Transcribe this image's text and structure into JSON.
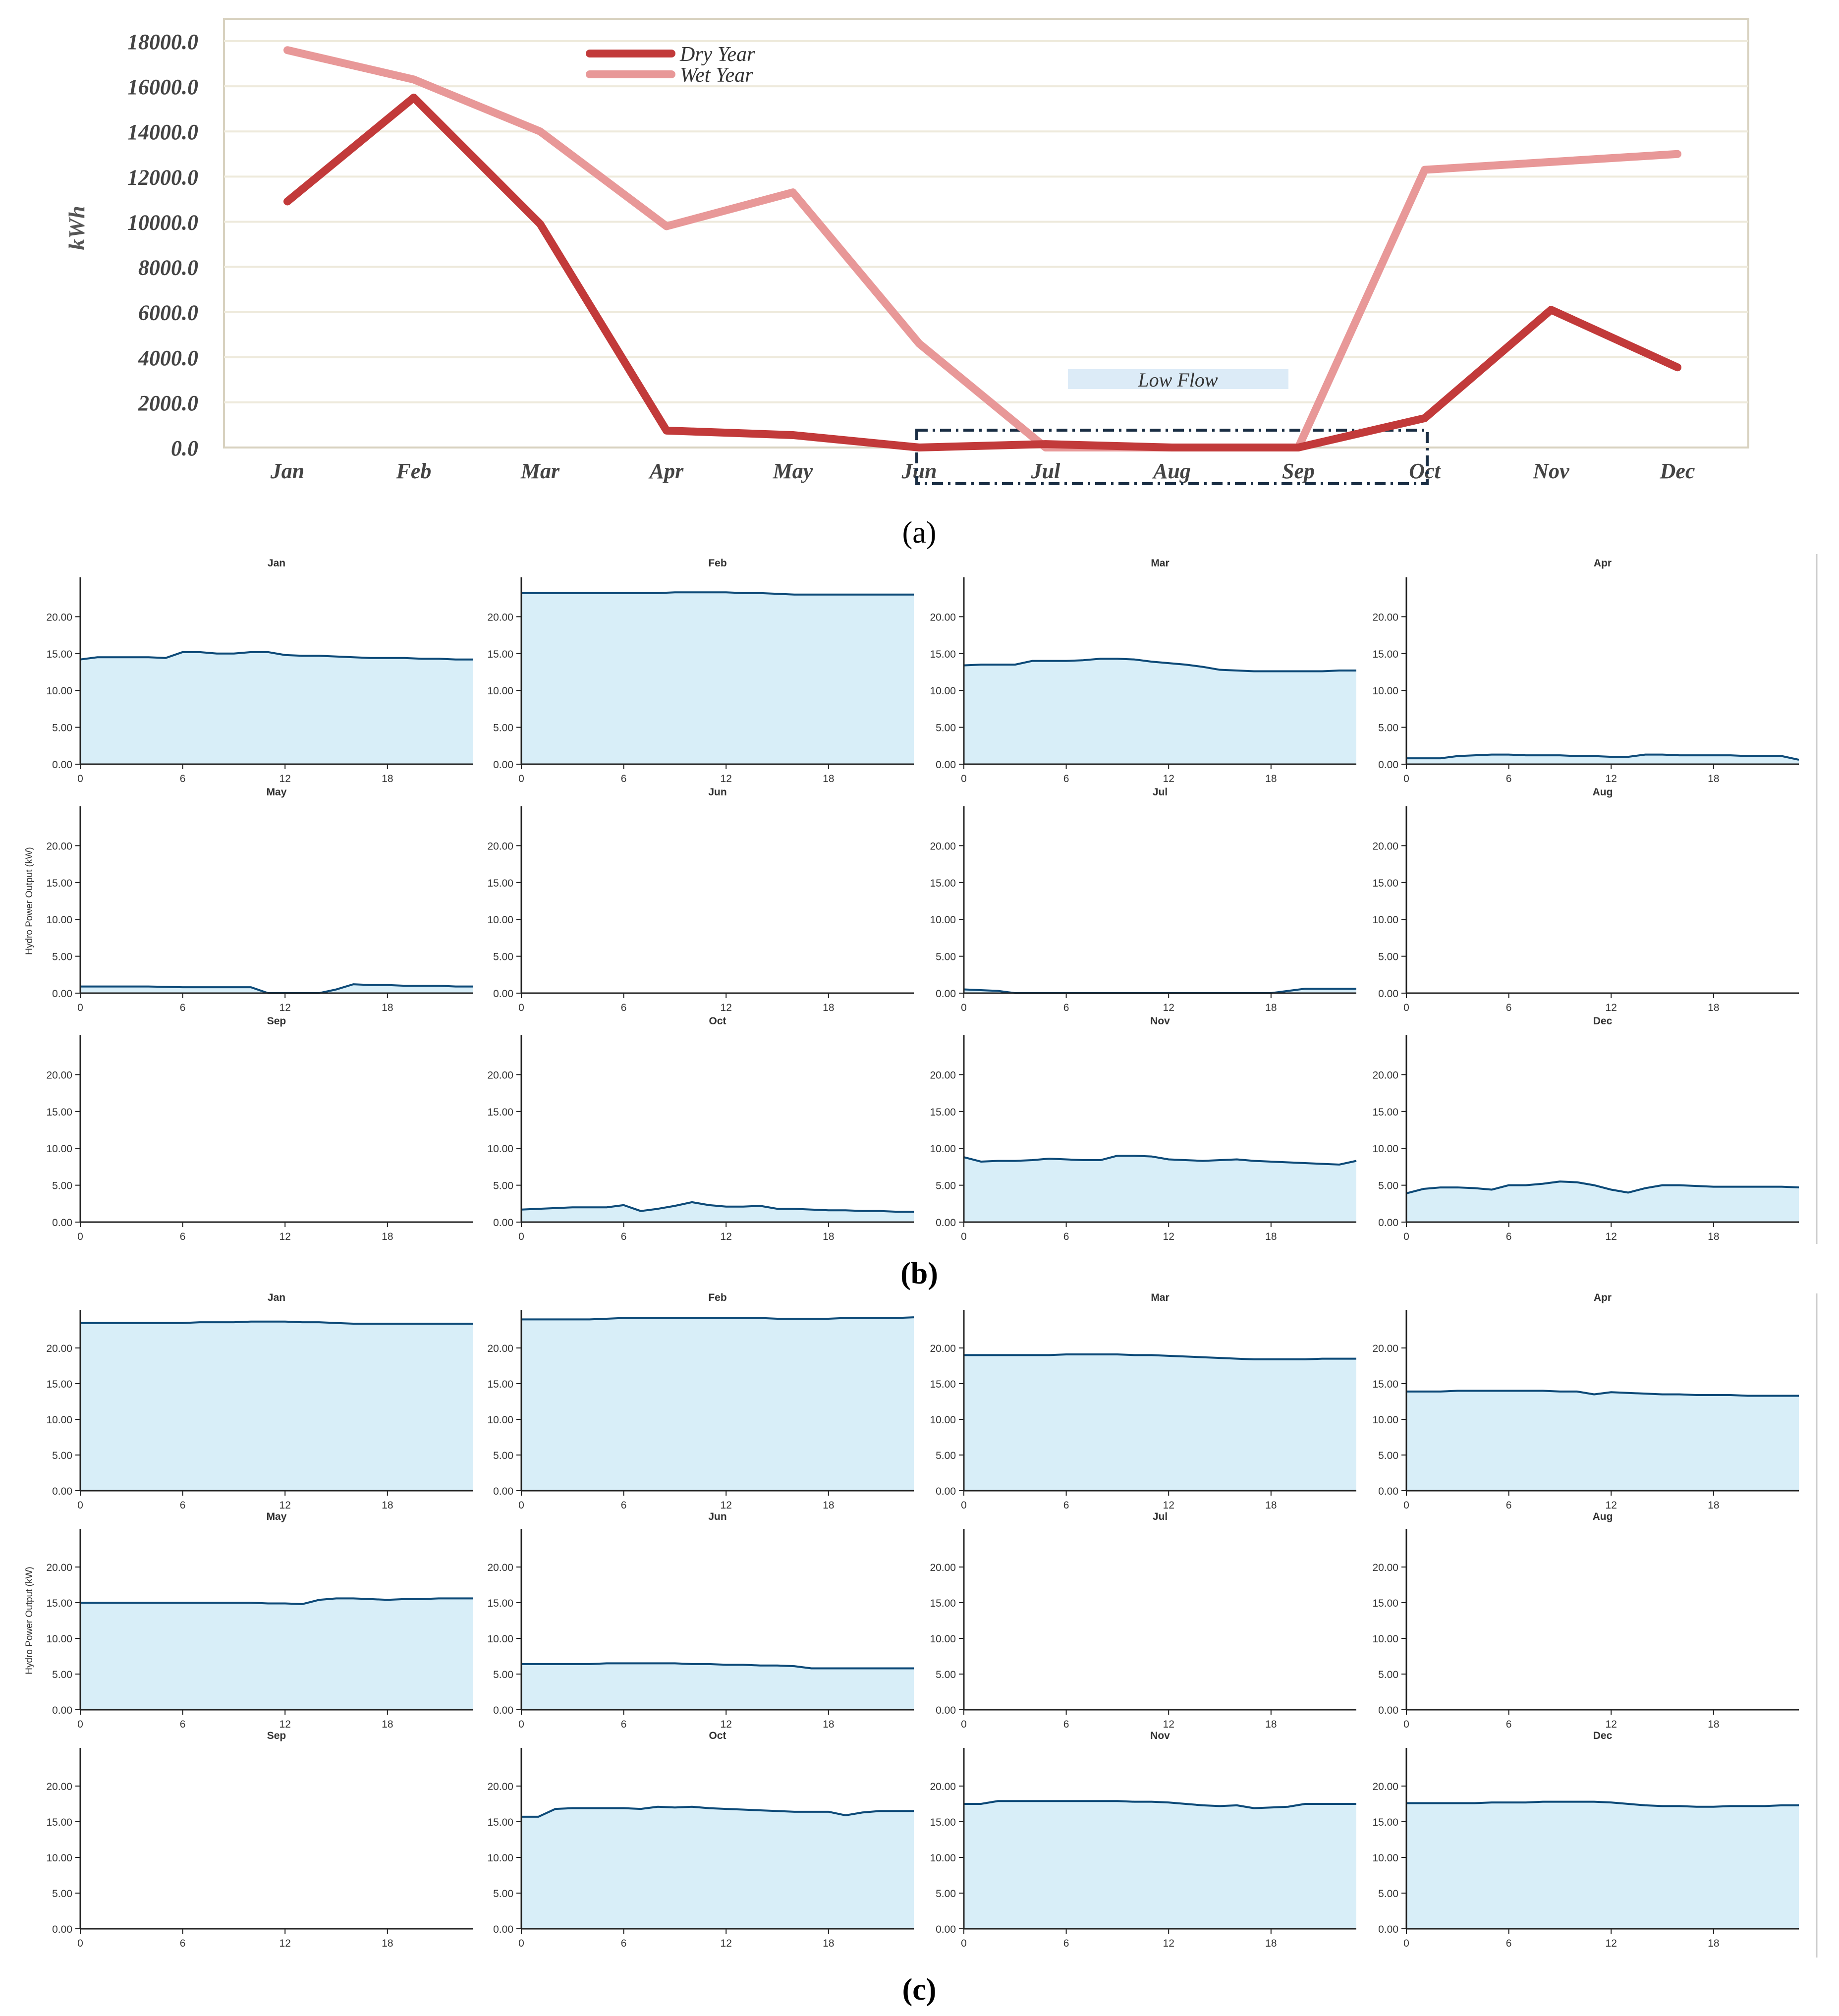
{
  "panel_labels": {
    "a": "(a)",
    "b": "(b)",
    "c": "(c)"
  },
  "colors": {
    "dry": "#c23a3a",
    "wet": "#e89898",
    "plot_border": "#d8d2c0",
    "grid": "#eeeadc",
    "area_fill": "#d8eef8",
    "area_line": "#0d4a78",
    "low_flow_band": "#dcebf7",
    "low_flow_box": "#1a2e44"
  },
  "chart_data": [
    {
      "type": "line",
      "panel": "(a)",
      "title": "",
      "xlabel": "",
      "ylabel": "kWh",
      "ylim": [
        0,
        18000
      ],
      "yticks": [
        "0.0",
        "2000.0",
        "4000.0",
        "6000.0",
        "8000.0",
        "10000.0",
        "12000.0",
        "14000.0",
        "16000.0",
        "18000.0"
      ],
      "categories": [
        "Jan",
        "Feb",
        "Mar",
        "Apr",
        "May",
        "Jun",
        "Jul",
        "Aug",
        "Sep",
        "Oct",
        "Nov",
        "Dec"
      ],
      "series": [
        {
          "name": "Dry Year",
          "values": [
            10900,
            15500,
            9900,
            750,
            550,
            0,
            150,
            0,
            0,
            1300,
            6100,
            3550
          ]
        },
        {
          "name": "Wet Year",
          "values": [
            17600,
            16300,
            14000,
            9800,
            11300,
            4600,
            0,
            0,
            0,
            12300,
            12650,
            13000
          ]
        }
      ],
      "annotations": [
        "Low Flow"
      ],
      "annotation_span": [
        "Jun",
        "Oct"
      ]
    },
    {
      "type": "area",
      "panel": "(b)",
      "ylabel": "Hydro Power Output (kW)",
      "ylim": [
        0,
        25
      ],
      "xlim": [
        0,
        23
      ],
      "xticks": [
        "0",
        "6",
        "12",
        "18"
      ],
      "yticks": [
        "0.00",
        "5.00",
        "10.00",
        "15.00",
        "20.00"
      ],
      "panels": [
        {
          "title": "Jan",
          "values": [
            14.2,
            14.5,
            14.5,
            14.5,
            14.5,
            14.4,
            15.2,
            15.2,
            15.0,
            15.0,
            15.2,
            15.2,
            14.8,
            14.7,
            14.7,
            14.6,
            14.5,
            14.4,
            14.4,
            14.4,
            14.3,
            14.3,
            14.2,
            14.2
          ]
        },
        {
          "title": "Feb",
          "values": [
            23.2,
            23.2,
            23.2,
            23.2,
            23.2,
            23.2,
            23.2,
            23.2,
            23.2,
            23.3,
            23.3,
            23.3,
            23.3,
            23.2,
            23.2,
            23.1,
            23.0,
            23.0,
            23.0,
            23.0,
            23.0,
            23.0,
            23.0,
            23.0
          ]
        },
        {
          "title": "Mar",
          "values": [
            13.4,
            13.5,
            13.5,
            13.5,
            14.0,
            14.0,
            14.0,
            14.1,
            14.3,
            14.3,
            14.2,
            13.9,
            13.7,
            13.5,
            13.2,
            12.8,
            12.7,
            12.6,
            12.6,
            12.6,
            12.6,
            12.6,
            12.7,
            12.7
          ]
        },
        {
          "title": "Apr",
          "values": [
            0.8,
            0.8,
            0.8,
            1.1,
            1.2,
            1.3,
            1.3,
            1.2,
            1.2,
            1.2,
            1.1,
            1.1,
            1.0,
            1.0,
            1.3,
            1.3,
            1.2,
            1.2,
            1.2,
            1.2,
            1.1,
            1.1,
            1.1,
            0.6
          ]
        },
        {
          "title": "May",
          "values": [
            0.9,
            0.9,
            0.9,
            0.9,
            0.9,
            0.85,
            0.8,
            0.8,
            0.8,
            0.8,
            0.8,
            0.0,
            0.0,
            0.0,
            0.0,
            0.5,
            1.2,
            1.1,
            1.1,
            1.0,
            1.0,
            1.0,
            0.9,
            0.9
          ]
        },
        {
          "title": "Jun",
          "values": []
        },
        {
          "title": "Jul",
          "values": [
            0.5,
            0.4,
            0.3,
            0.0,
            0.0,
            0.0,
            0.0,
            0.0,
            0.0,
            0.0,
            0.0,
            0.0,
            0.0,
            0.0,
            0.0,
            0.0,
            0.0,
            0.0,
            0.0,
            0.3,
            0.6,
            0.6,
            0.6,
            0.6
          ]
        },
        {
          "title": "Aug",
          "values": []
        },
        {
          "title": "Sep",
          "values": []
        },
        {
          "title": "Oct",
          "values": [
            1.7,
            1.8,
            1.9,
            2.0,
            2.0,
            2.0,
            2.3,
            1.5,
            1.8,
            2.2,
            2.7,
            2.3,
            2.1,
            2.1,
            2.2,
            1.8,
            1.8,
            1.7,
            1.6,
            1.6,
            1.5,
            1.5,
            1.4,
            1.4
          ]
        },
        {
          "title": "Nov",
          "values": [
            8.8,
            8.2,
            8.3,
            8.3,
            8.4,
            8.6,
            8.5,
            8.4,
            8.4,
            9.0,
            9.0,
            8.9,
            8.5,
            8.4,
            8.3,
            8.4,
            8.5,
            8.3,
            8.2,
            8.1,
            8.0,
            7.9,
            7.8,
            8.3
          ]
        },
        {
          "title": "Dec",
          "values": [
            3.9,
            4.5,
            4.7,
            4.7,
            4.6,
            4.4,
            5.0,
            5.0,
            5.2,
            5.5,
            5.4,
            5.0,
            4.4,
            4.0,
            4.6,
            5.0,
            5.0,
            4.9,
            4.8,
            4.8,
            4.8,
            4.8,
            4.8,
            4.7
          ]
        }
      ]
    },
    {
      "type": "area",
      "panel": "(c)",
      "ylabel": "Hydro Power Output (kW)",
      "ylim": [
        0,
        25
      ],
      "xlim": [
        0,
        23
      ],
      "xticks": [
        "0",
        "6",
        "12",
        "18"
      ],
      "yticks": [
        "0.00",
        "5.00",
        "10.00",
        "15.00",
        "20.00"
      ],
      "panels": [
        {
          "title": "Jan",
          "values": [
            23.5,
            23.5,
            23.5,
            23.5,
            23.5,
            23.5,
            23.5,
            23.6,
            23.6,
            23.6,
            23.7,
            23.7,
            23.7,
            23.6,
            23.6,
            23.5,
            23.4,
            23.4,
            23.4,
            23.4,
            23.4,
            23.4,
            23.4,
            23.4
          ]
        },
        {
          "title": "Feb",
          "values": [
            24.0,
            24.0,
            24.0,
            24.0,
            24.0,
            24.1,
            24.2,
            24.2,
            24.2,
            24.2,
            24.2,
            24.2,
            24.2,
            24.2,
            24.2,
            24.1,
            24.1,
            24.1,
            24.1,
            24.2,
            24.2,
            24.2,
            24.2,
            24.3
          ]
        },
        {
          "title": "Mar",
          "values": [
            19.0,
            19.0,
            19.0,
            19.0,
            19.0,
            19.0,
            19.1,
            19.1,
            19.1,
            19.1,
            19.0,
            19.0,
            18.9,
            18.8,
            18.7,
            18.6,
            18.5,
            18.4,
            18.4,
            18.4,
            18.4,
            18.5,
            18.5,
            18.5
          ]
        },
        {
          "title": "Apr",
          "values": [
            13.9,
            13.9,
            13.9,
            14.0,
            14.0,
            14.0,
            14.0,
            14.0,
            14.0,
            13.9,
            13.9,
            13.5,
            13.8,
            13.7,
            13.6,
            13.5,
            13.5,
            13.4,
            13.4,
            13.4,
            13.3,
            13.3,
            13.3,
            13.3
          ]
        },
        {
          "title": "May",
          "values": [
            15.0,
            15.0,
            15.0,
            15.0,
            15.0,
            15.0,
            15.0,
            15.0,
            15.0,
            15.0,
            15.0,
            14.9,
            14.9,
            14.8,
            15.4,
            15.6,
            15.6,
            15.5,
            15.4,
            15.5,
            15.5,
            15.6,
            15.6,
            15.6
          ]
        },
        {
          "title": "Jun",
          "values": [
            6.4,
            6.4,
            6.4,
            6.4,
            6.4,
            6.5,
            6.5,
            6.5,
            6.5,
            6.5,
            6.4,
            6.4,
            6.3,
            6.3,
            6.2,
            6.2,
            6.1,
            5.8,
            5.8,
            5.8,
            5.8,
            5.8,
            5.8,
            5.8
          ]
        },
        {
          "title": "Jul",
          "values": []
        },
        {
          "title": "Aug",
          "values": []
        },
        {
          "title": "Sep",
          "values": []
        },
        {
          "title": "Oct",
          "values": [
            15.7,
            15.7,
            16.8,
            16.9,
            16.9,
            16.9,
            16.9,
            16.8,
            17.1,
            17.0,
            17.1,
            16.9,
            16.8,
            16.7,
            16.6,
            16.5,
            16.4,
            16.4,
            16.4,
            15.9,
            16.3,
            16.5,
            16.5,
            16.5
          ]
        },
        {
          "title": "Nov",
          "values": [
            17.5,
            17.5,
            17.9,
            17.9,
            17.9,
            17.9,
            17.9,
            17.9,
            17.9,
            17.9,
            17.8,
            17.8,
            17.7,
            17.5,
            17.3,
            17.2,
            17.3,
            16.9,
            17.0,
            17.1,
            17.5,
            17.5,
            17.5,
            17.5
          ]
        },
        {
          "title": "Dec",
          "values": [
            17.6,
            17.6,
            17.6,
            17.6,
            17.6,
            17.7,
            17.7,
            17.7,
            17.8,
            17.8,
            17.8,
            17.8,
            17.7,
            17.5,
            17.3,
            17.2,
            17.2,
            17.1,
            17.1,
            17.2,
            17.2,
            17.2,
            17.3,
            17.3
          ]
        }
      ]
    }
  ]
}
